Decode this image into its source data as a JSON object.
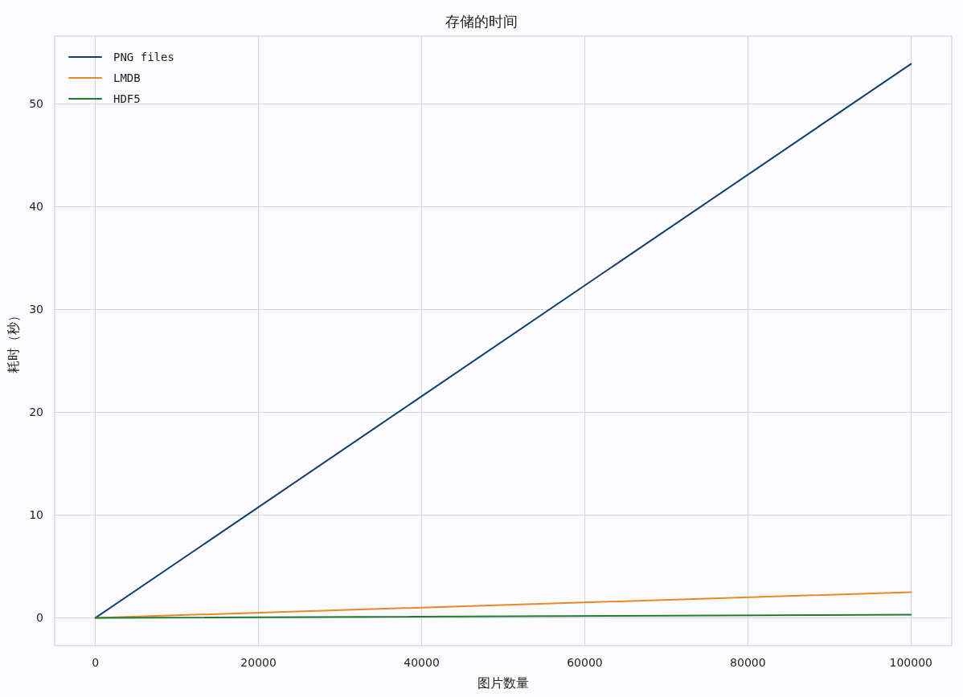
{
  "chart_data": {
    "type": "line",
    "title": "存储的时间",
    "xlabel": "图片数量",
    "ylabel": "耗时（秒）",
    "x": [
      0,
      100000
    ],
    "series": [
      {
        "name": "PNG files",
        "color": "#123e6b",
        "values": [
          0,
          53.9
        ]
      },
      {
        "name": "LMDB",
        "color": "#e8892b",
        "values": [
          0,
          2.5
        ]
      },
      {
        "name": "HDF5",
        "color": "#1e7a30",
        "values": [
          0,
          0.3
        ]
      }
    ],
    "xlim": [
      -5000,
      105000
    ],
    "xticks": [
      0,
      20000,
      40000,
      60000,
      80000,
      100000
    ],
    "ylim": [
      -2.7,
      56.6
    ],
    "yticks": [
      0,
      10,
      20,
      30,
      40,
      50
    ],
    "grid": true,
    "legend": "top left",
    "marker": "none",
    "line_style": "solid"
  }
}
